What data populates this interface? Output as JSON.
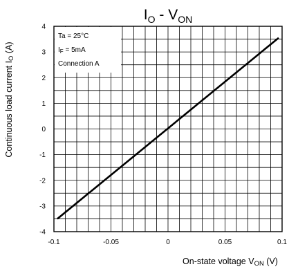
{
  "chart_data": {
    "type": "line",
    "title": {
      "main": "I",
      "main_sub": "O",
      "separator": " - ",
      "second": "V",
      "second_sub": "ON"
    },
    "xlabel": {
      "main": "On-state voltage V",
      "sub": "ON",
      "unit": " (V)"
    },
    "ylabel": {
      "main": "Continuous load current I",
      "sub": "O",
      "unit": " (A)"
    },
    "xlim": [
      -0.1,
      0.1
    ],
    "ylim": [
      -4,
      4
    ],
    "x_tick_labels": [
      "-0.1",
      "-0.05",
      "0",
      "0.05",
      "0.1"
    ],
    "y_tick_labels": [
      "4",
      "3",
      "2",
      "1",
      "0",
      "-1",
      "-2",
      "-3",
      "-4"
    ],
    "grid": true,
    "conditions": [
      {
        "main": "Ta = 25°C",
        "sub": "",
        "tail": ""
      },
      {
        "main": "I",
        "sub": "F",
        "tail": " = 5mA"
      },
      {
        "main": "Connection A",
        "sub": "",
        "tail": ""
      }
    ],
    "series": [
      {
        "x": [
          -0.097,
          0.097
        ],
        "y": [
          -3.5,
          3.55
        ],
        "color": "#000000"
      }
    ]
  }
}
